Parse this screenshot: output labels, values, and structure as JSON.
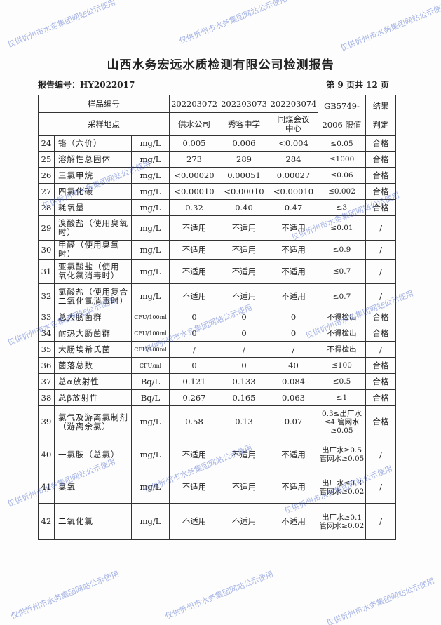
{
  "title": "山西水务宏远水质检测有限公司检测报告",
  "report_no": "报告编号：HY2022017",
  "page_no": "第 9 页共 12 页",
  "watermark": "仅供忻州市水务集团网站公示使用",
  "header": {
    "sample_no_label": "样品编号",
    "location_label": "采样地点",
    "samples": [
      "202203072",
      "202203073",
      "202203074"
    ],
    "locations": [
      "供水公司",
      "秀容中学",
      "同煤会议中心"
    ],
    "limit_label_1": "GB5749-",
    "limit_label_2": "2006 限值",
    "result_label_1": "结果",
    "result_label_2": "判定"
  },
  "rows": [
    {
      "no": "24",
      "name": "铬（六价）",
      "unit": "mg/L",
      "v": [
        "0.005",
        "0.006",
        "<0.004"
      ],
      "limit": "≤0.05",
      "result": "合格"
    },
    {
      "no": "25",
      "name": "溶解性总固体",
      "unit": "mg/L",
      "v": [
        "273",
        "289",
        "284"
      ],
      "limit": "≤1000",
      "result": "合格"
    },
    {
      "no": "26",
      "name": "三氯甲烷",
      "unit": "mg/L",
      "v": [
        "<0.00020",
        "0.00051",
        "0.00027"
      ],
      "limit": "≤0.06",
      "result": "合格"
    },
    {
      "no": "27",
      "name": "四氯化碳",
      "unit": "mg/L",
      "v": [
        "<0.00010",
        "<0.00010",
        "<0.00010"
      ],
      "limit": "≤0.002",
      "result": "合格"
    },
    {
      "no": "28",
      "name": "耗氧量",
      "unit": "mg/L",
      "v": [
        "0.32",
        "0.40",
        "0.47"
      ],
      "limit": "≤3",
      "result": "合格"
    },
    {
      "no": "29",
      "name": "溴酸盐（使用臭氧时）",
      "unit": "mg/L",
      "v": [
        "不适用",
        "不适用",
        "不适用"
      ],
      "limit": "≤0.01",
      "result": "/"
    },
    {
      "no": "30",
      "name": "甲醛（使用臭氧时）",
      "unit": "mg/L",
      "v": [
        "不适用",
        "不适用",
        "不适用"
      ],
      "limit": "≤0.9",
      "result": "/"
    },
    {
      "no": "31",
      "name": "亚氯酸盐（使用二氧化氯消毒时）",
      "unit": "mg/L",
      "v": [
        "不适用",
        "不适用",
        "不适用"
      ],
      "limit": "≤0.7",
      "result": "/"
    },
    {
      "no": "32",
      "name": "氯酸盐（使用复合二氧化氯消毒时）",
      "unit": "mg/L",
      "v": [
        "不适用",
        "不适用",
        "不适用"
      ],
      "limit": "≤0.7",
      "result": "/"
    },
    {
      "no": "33",
      "name": "总大肠菌群",
      "unit": "CFU/100ml",
      "v": [
        "0",
        "0",
        "0"
      ],
      "limit": "不得检出",
      "result": "合格"
    },
    {
      "no": "34",
      "name": "耐热大肠菌群",
      "unit": "CFU/100ml",
      "v": [
        "0",
        "0",
        "0"
      ],
      "limit": "不得检出",
      "result": "合格"
    },
    {
      "no": "35",
      "name": "大肠埃希氏菌",
      "unit": "CFU/100ml",
      "v": [
        "/",
        "/",
        "/"
      ],
      "limit": "不得检出",
      "result": "/"
    },
    {
      "no": "36",
      "name": "菌落总数",
      "unit": "CFU/ml",
      "v": [
        "0",
        "0",
        "40"
      ],
      "limit": "≤100",
      "result": "合格"
    },
    {
      "no": "37",
      "name": "总α放射性",
      "unit": "Bq/L",
      "v": [
        "0.121",
        "0.133",
        "0.084"
      ],
      "limit": "≤0.5",
      "result": "合格"
    },
    {
      "no": "38",
      "name": "总β放射性",
      "unit": "Bq/L",
      "v": [
        "0.267",
        "0.165",
        "0.063"
      ],
      "limit": "≤1",
      "result": "合格"
    },
    {
      "no": "39",
      "name": "氯气及游离氯制剂（游离余氯）",
      "unit": "mg/L",
      "v": [
        "0.58",
        "0.13",
        "0.07"
      ],
      "limit": "0.3≤出厂水≤4 管网水≥0.05",
      "result": "合格"
    },
    {
      "no": "40",
      "name": "一氯胺（总氯）",
      "unit": "mg/L",
      "v": [
        "不适用",
        "不适用",
        "不适用"
      ],
      "limit": "出厂水≥0.5 管网水≥0.05",
      "result": "/"
    },
    {
      "no": "41",
      "name": "臭氧",
      "unit": "mg/L",
      "v": [
        "不适用",
        "不适用",
        "不适用"
      ],
      "limit": "出厂水≤0.3 管网水≥0.02",
      "result": "/"
    },
    {
      "no": "42",
      "name": "二氧化氯",
      "unit": "mg/L",
      "v": [
        "不适用",
        "不适用",
        "不适用"
      ],
      "limit": "出厂水≥0.1 管网水≥0.02",
      "result": "/"
    }
  ]
}
